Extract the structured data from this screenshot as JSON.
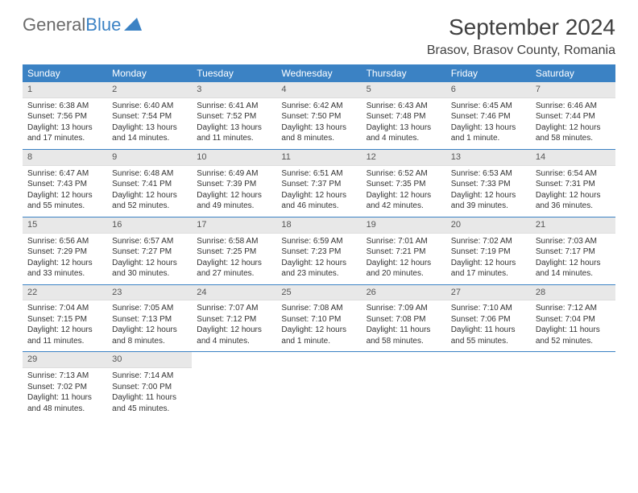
{
  "logo": {
    "text1": "General",
    "text2": "Blue"
  },
  "title": {
    "month": "September 2024",
    "location": "Brasov, Brasov County, Romania"
  },
  "dayNames": [
    "Sunday",
    "Monday",
    "Tuesday",
    "Wednesday",
    "Thursday",
    "Friday",
    "Saturday"
  ],
  "colors": {
    "header_bg": "#3b82c4",
    "daynum_bg": "#e8e8e8",
    "sep": "#3b82c4"
  },
  "weeks": [
    [
      {
        "n": "1",
        "sr": "Sunrise: 6:38 AM",
        "ss": "Sunset: 7:56 PM",
        "dl": "Daylight: 13 hours and 17 minutes."
      },
      {
        "n": "2",
        "sr": "Sunrise: 6:40 AM",
        "ss": "Sunset: 7:54 PM",
        "dl": "Daylight: 13 hours and 14 minutes."
      },
      {
        "n": "3",
        "sr": "Sunrise: 6:41 AM",
        "ss": "Sunset: 7:52 PM",
        "dl": "Daylight: 13 hours and 11 minutes."
      },
      {
        "n": "4",
        "sr": "Sunrise: 6:42 AM",
        "ss": "Sunset: 7:50 PM",
        "dl": "Daylight: 13 hours and 8 minutes."
      },
      {
        "n": "5",
        "sr": "Sunrise: 6:43 AM",
        "ss": "Sunset: 7:48 PM",
        "dl": "Daylight: 13 hours and 4 minutes."
      },
      {
        "n": "6",
        "sr": "Sunrise: 6:45 AM",
        "ss": "Sunset: 7:46 PM",
        "dl": "Daylight: 13 hours and 1 minute."
      },
      {
        "n": "7",
        "sr": "Sunrise: 6:46 AM",
        "ss": "Sunset: 7:44 PM",
        "dl": "Daylight: 12 hours and 58 minutes."
      }
    ],
    [
      {
        "n": "8",
        "sr": "Sunrise: 6:47 AM",
        "ss": "Sunset: 7:43 PM",
        "dl": "Daylight: 12 hours and 55 minutes."
      },
      {
        "n": "9",
        "sr": "Sunrise: 6:48 AM",
        "ss": "Sunset: 7:41 PM",
        "dl": "Daylight: 12 hours and 52 minutes."
      },
      {
        "n": "10",
        "sr": "Sunrise: 6:49 AM",
        "ss": "Sunset: 7:39 PM",
        "dl": "Daylight: 12 hours and 49 minutes."
      },
      {
        "n": "11",
        "sr": "Sunrise: 6:51 AM",
        "ss": "Sunset: 7:37 PM",
        "dl": "Daylight: 12 hours and 46 minutes."
      },
      {
        "n": "12",
        "sr": "Sunrise: 6:52 AM",
        "ss": "Sunset: 7:35 PM",
        "dl": "Daylight: 12 hours and 42 minutes."
      },
      {
        "n": "13",
        "sr": "Sunrise: 6:53 AM",
        "ss": "Sunset: 7:33 PM",
        "dl": "Daylight: 12 hours and 39 minutes."
      },
      {
        "n": "14",
        "sr": "Sunrise: 6:54 AM",
        "ss": "Sunset: 7:31 PM",
        "dl": "Daylight: 12 hours and 36 minutes."
      }
    ],
    [
      {
        "n": "15",
        "sr": "Sunrise: 6:56 AM",
        "ss": "Sunset: 7:29 PM",
        "dl": "Daylight: 12 hours and 33 minutes."
      },
      {
        "n": "16",
        "sr": "Sunrise: 6:57 AM",
        "ss": "Sunset: 7:27 PM",
        "dl": "Daylight: 12 hours and 30 minutes."
      },
      {
        "n": "17",
        "sr": "Sunrise: 6:58 AM",
        "ss": "Sunset: 7:25 PM",
        "dl": "Daylight: 12 hours and 27 minutes."
      },
      {
        "n": "18",
        "sr": "Sunrise: 6:59 AM",
        "ss": "Sunset: 7:23 PM",
        "dl": "Daylight: 12 hours and 23 minutes."
      },
      {
        "n": "19",
        "sr": "Sunrise: 7:01 AM",
        "ss": "Sunset: 7:21 PM",
        "dl": "Daylight: 12 hours and 20 minutes."
      },
      {
        "n": "20",
        "sr": "Sunrise: 7:02 AM",
        "ss": "Sunset: 7:19 PM",
        "dl": "Daylight: 12 hours and 17 minutes."
      },
      {
        "n": "21",
        "sr": "Sunrise: 7:03 AM",
        "ss": "Sunset: 7:17 PM",
        "dl": "Daylight: 12 hours and 14 minutes."
      }
    ],
    [
      {
        "n": "22",
        "sr": "Sunrise: 7:04 AM",
        "ss": "Sunset: 7:15 PM",
        "dl": "Daylight: 12 hours and 11 minutes."
      },
      {
        "n": "23",
        "sr": "Sunrise: 7:05 AM",
        "ss": "Sunset: 7:13 PM",
        "dl": "Daylight: 12 hours and 8 minutes."
      },
      {
        "n": "24",
        "sr": "Sunrise: 7:07 AM",
        "ss": "Sunset: 7:12 PM",
        "dl": "Daylight: 12 hours and 4 minutes."
      },
      {
        "n": "25",
        "sr": "Sunrise: 7:08 AM",
        "ss": "Sunset: 7:10 PM",
        "dl": "Daylight: 12 hours and 1 minute."
      },
      {
        "n": "26",
        "sr": "Sunrise: 7:09 AM",
        "ss": "Sunset: 7:08 PM",
        "dl": "Daylight: 11 hours and 58 minutes."
      },
      {
        "n": "27",
        "sr": "Sunrise: 7:10 AM",
        "ss": "Sunset: 7:06 PM",
        "dl": "Daylight: 11 hours and 55 minutes."
      },
      {
        "n": "28",
        "sr": "Sunrise: 7:12 AM",
        "ss": "Sunset: 7:04 PM",
        "dl": "Daylight: 11 hours and 52 minutes."
      }
    ],
    [
      {
        "n": "29",
        "sr": "Sunrise: 7:13 AM",
        "ss": "Sunset: 7:02 PM",
        "dl": "Daylight: 11 hours and 48 minutes."
      },
      {
        "n": "30",
        "sr": "Sunrise: 7:14 AM",
        "ss": "Sunset: 7:00 PM",
        "dl": "Daylight: 11 hours and 45 minutes."
      },
      {
        "empty": true
      },
      {
        "empty": true
      },
      {
        "empty": true
      },
      {
        "empty": true
      },
      {
        "empty": true
      }
    ]
  ]
}
